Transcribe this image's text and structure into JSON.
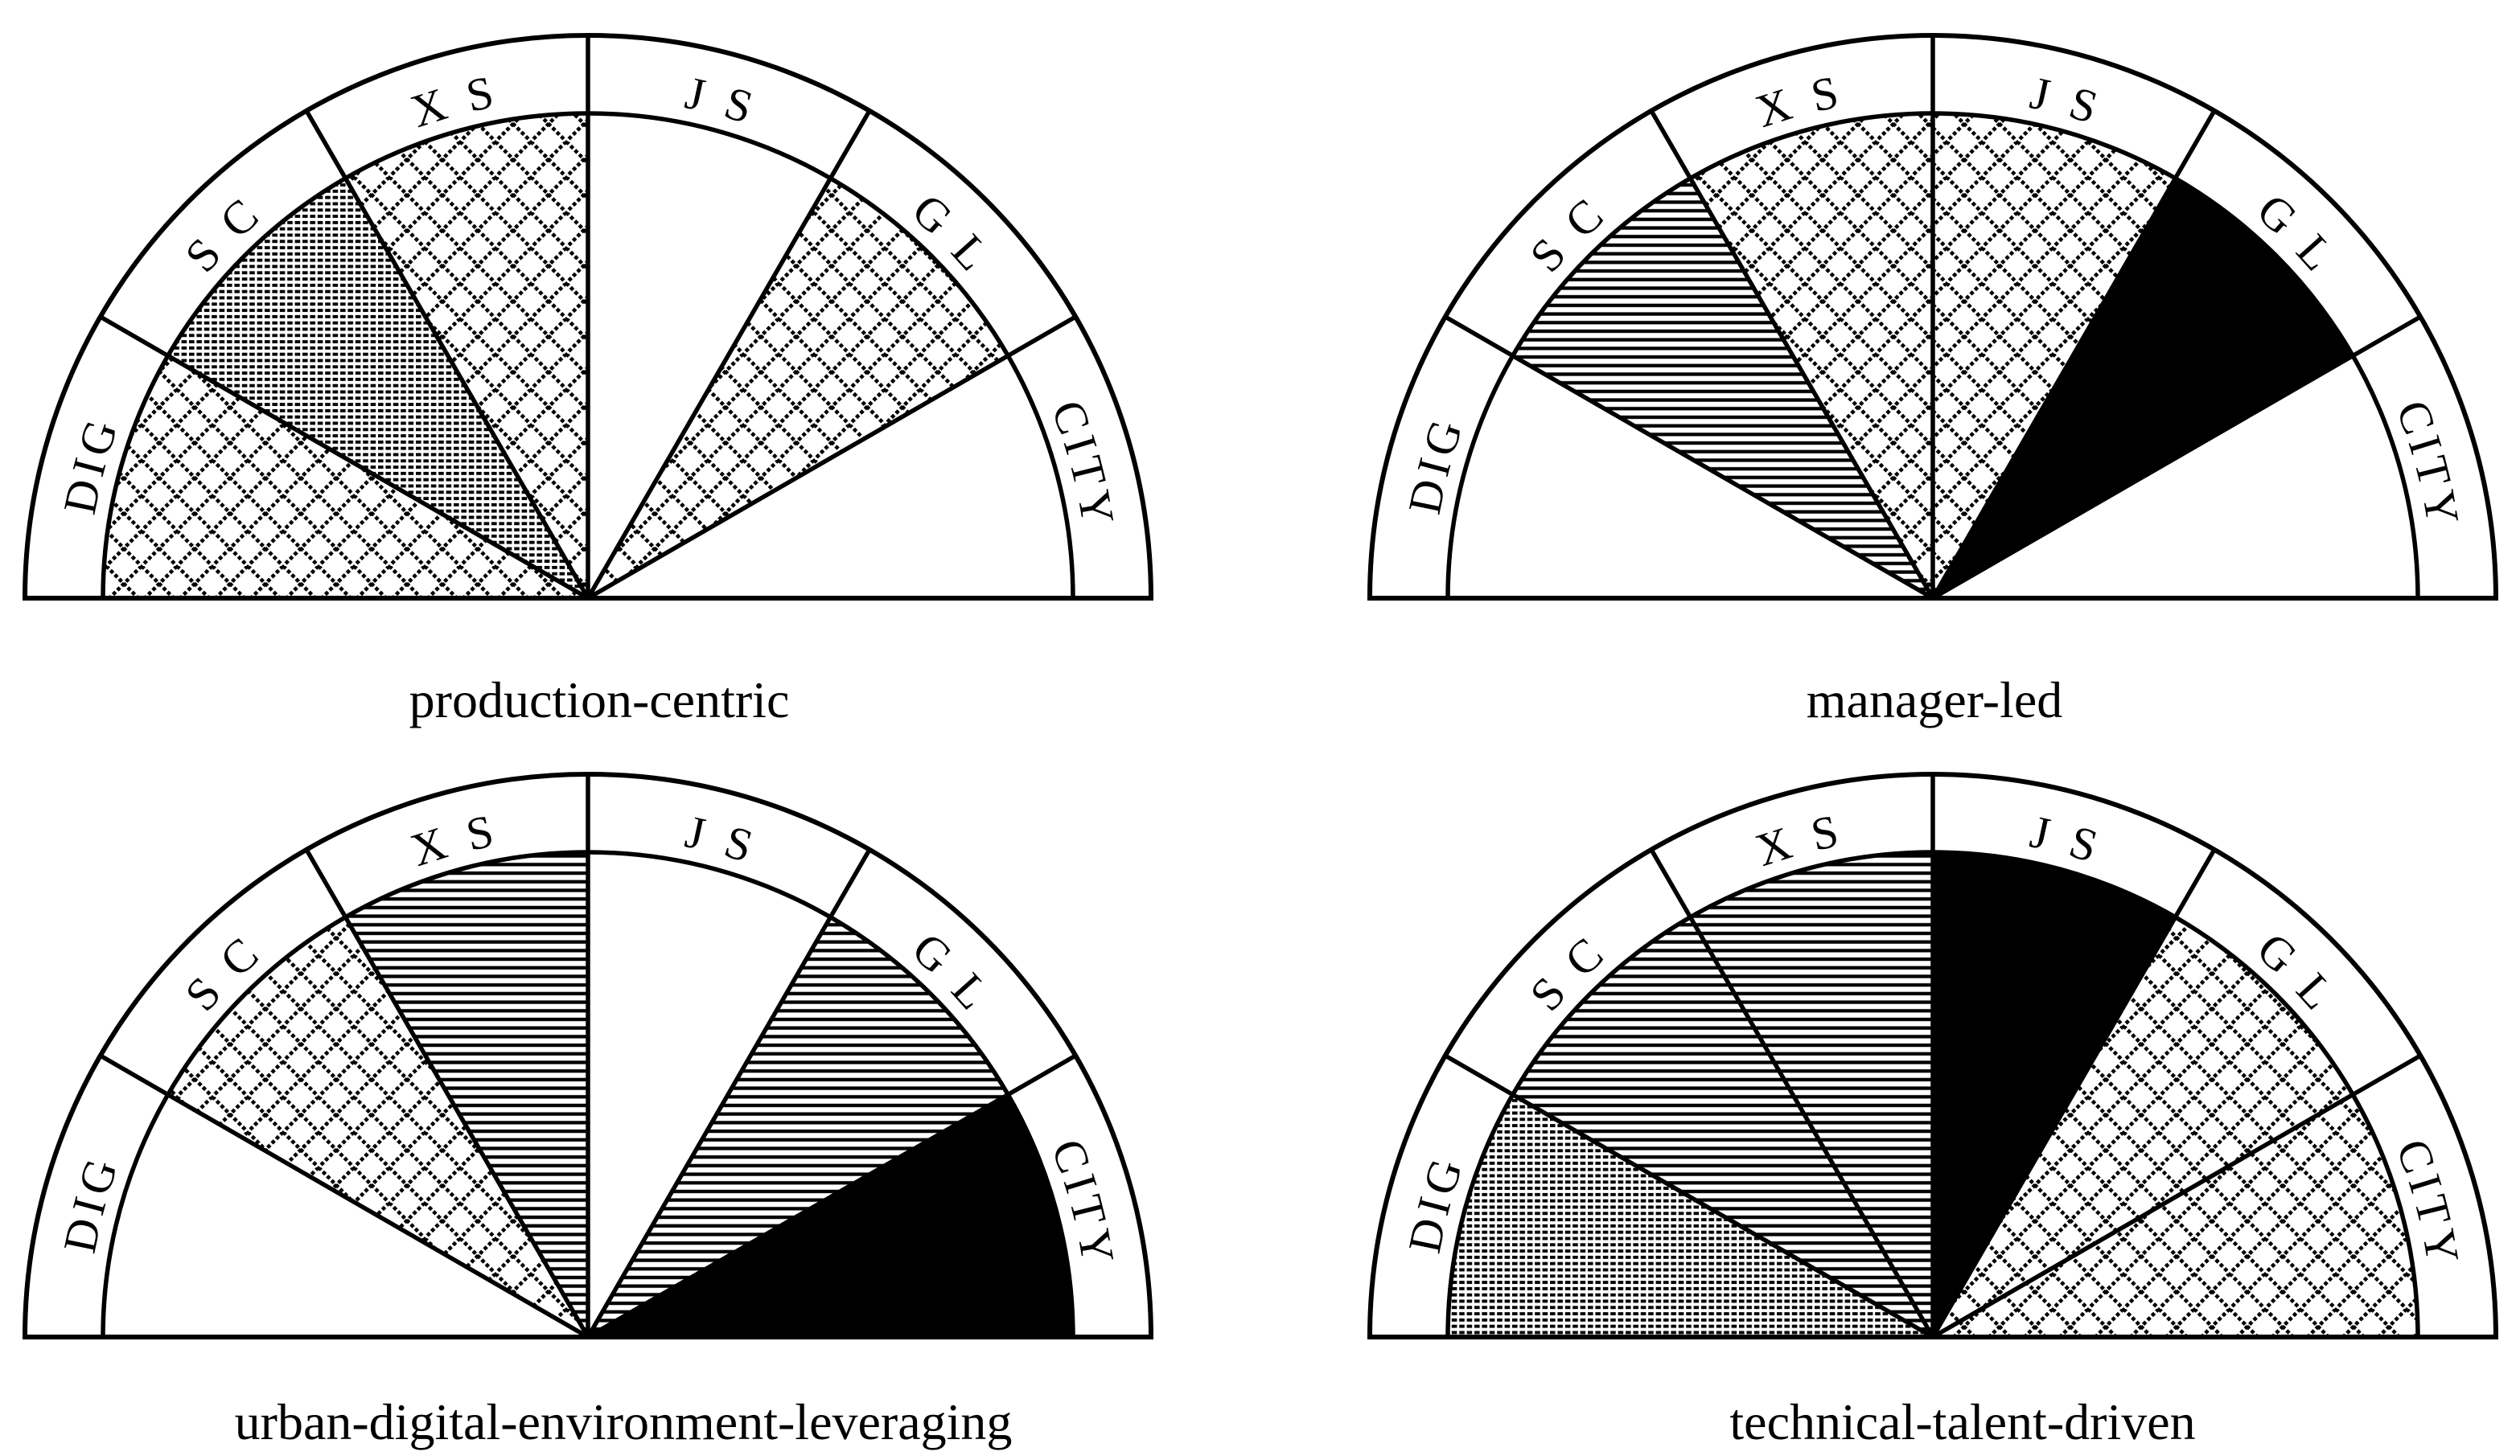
{
  "figure": {
    "description": "Four semicircular sector (rose/fan) charts comparing innovation-type profiles across six categories",
    "colors": {
      "ink": "#000000",
      "paper": "#ffffff"
    },
    "fill_legend": {
      "none": "empty white sector",
      "fine-dash": "dense fine dashed-row texture",
      "hlines": "horizontal line hatching",
      "crosshatch": "dotted diagonal diamond lattice",
      "solid-black": "solid black fill"
    }
  },
  "chart_data": [
    {
      "type": "semicircle-rose",
      "title": "production-centric",
      "categories": [
        "DIG",
        "S C",
        "X S",
        "J S",
        "G L",
        "CITY"
      ],
      "fills": [
        "crosshatch",
        "fine-dash",
        "crosshatch",
        "none",
        "crosshatch",
        "none"
      ],
      "sector_angle_deg": 30,
      "layout": "semicircle 180deg, categories left to right, labels on outer ring"
    },
    {
      "type": "semicircle-rose",
      "title": "manager-led",
      "categories": [
        "DIG",
        "S C",
        "X S",
        "J S",
        "G L",
        "CITY"
      ],
      "fills": [
        "none",
        "hlines",
        "crosshatch",
        "crosshatch",
        "solid-black",
        "none"
      ],
      "sector_angle_deg": 30,
      "layout": "semicircle 180deg, categories left to right, labels on outer ring"
    },
    {
      "type": "semicircle-rose",
      "title": "urban-digital-environment-leveraging",
      "categories": [
        "DIG",
        "S C",
        "X S",
        "J S",
        "G L",
        "CITY"
      ],
      "fills": [
        "none",
        "crosshatch",
        "hlines",
        "none",
        "hlines",
        "solid-black"
      ],
      "sector_angle_deg": 30,
      "layout": "semicircle 180deg, categories left to right, labels on outer ring"
    },
    {
      "type": "semicircle-rose",
      "title": "technical-talent-driven",
      "categories": [
        "DIG",
        "S C",
        "X S",
        "J S",
        "G L",
        "CITY"
      ],
      "fills": [
        "fine-dash",
        "hlines",
        "hlines",
        "solid-black",
        "crosshatch",
        "crosshatch"
      ],
      "sector_angle_deg": 30,
      "layout": "semicircle 180deg, categories left to right, labels on outer ring"
    }
  ]
}
